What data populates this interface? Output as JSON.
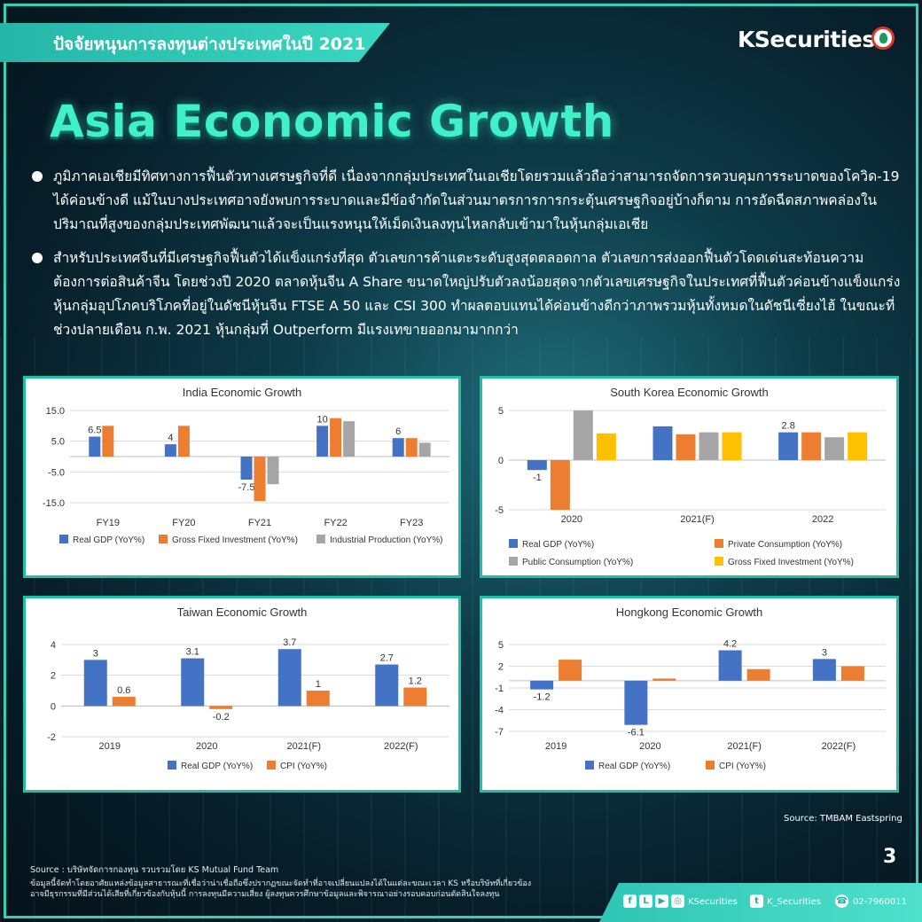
{
  "header": {
    "tag_title": "ปัจจัยหนุนการลงทุนต่างประเทศในปี 2021",
    "brand": "KSecurities"
  },
  "headline": "Asia Economic Growth",
  "bullets": [
    "ภูมิภาคเอเชียมีทิศทางการฟื้นตัวทางเศรษฐกิจที่ดี เนื่องจากกลุ่มประเทศในเอเชียโดยรวมแล้วถือว่าสามารถจัดการควบคุมการระบาดของโควิด-19 ได้ค่อนข้างดี แม้ในบางประเทศอาจยังพบการระบาดและมีข้อจำกัดในส่วนมาตรการการกระตุ้นเศรษฐกิจอยู่บ้างก็ตาม การอัดฉีดสภาพคล่องในปริมาณที่สูงของกลุ่มประเทศพัฒนาแล้วจะเป็นแรงหนุนให้เม็ดเงินลงทุนไหลกลับเข้ามาในหุ้นกลุ่มเอเชีย",
    "สำหรับประเทศจีนที่มีเศรษฐกิจฟื้นตัวได้แข็งแกร่งที่สุด ตัวเลขการค้าแตะระดับสูงสุดตลอดกาล ตัวเลขการส่งออกฟื้นตัวโดดเด่นสะท้อนความต้องการต่อสินค้าจีน โดยช่วงปี 2020 ตลาดหุ้นจีน A Share ขนาดใหญ่ปรับตัวลงน้อยสุดจากตัวเลขเศรษฐกิจในประเทศที่ฟื้นตัวค่อนข้างแข็งแกร่ง หุ้นกลุ่มอุปโภคบริโภคที่อยู่ในดัชนีหุ้นจีน FTSE A 50 และ CSI 300 ทำผลตอบแทนได้ค่อนข้างดีกว่าภาพรวมหุ้นทั้งหมดในดัชนีเซี่ยงไฮ้ ในขณะที่ช่วงปลายเดือน ก.พ. 2021 หุ้นกลุ่มที่ Outperform มีแรงเทขายออกมามากกว่า"
  ],
  "colors": {
    "blue": "#4472c4",
    "orange": "#ed7d31",
    "gray": "#a5a5a5",
    "yellow": "#ffc000",
    "accent": "#2fd1b8",
    "headline": "#3ff0c8"
  },
  "chart_data": [
    {
      "type": "bar",
      "title": "India Economic Growth",
      "categories": [
        "FY19",
        "FY20",
        "FY21",
        "FY22",
        "FY23"
      ],
      "series": [
        {
          "name": "Real GDP (YoY%)",
          "color": "#4472c4",
          "values": [
            6.5,
            4,
            -7.5,
            10,
            6
          ],
          "labels": [
            "6.5",
            "4",
            "-7.5",
            "10",
            "6"
          ]
        },
        {
          "name": "Gross Fixed Investment (YoY%)",
          "color": "#ed7d31",
          "values": [
            10,
            10,
            -14.5,
            12.5,
            6
          ]
        },
        {
          "name": "Industrial Production (YoY%)",
          "color": "#a5a5a5",
          "values": [
            null,
            null,
            -9,
            11.5,
            4.5
          ]
        }
      ],
      "yticks": [
        "15.0",
        "5.0",
        "-5.0",
        "-15.0"
      ],
      "ylim": [
        -15,
        15
      ],
      "grid": true,
      "legend": "bottom"
    },
    {
      "type": "bar",
      "title": "South Korea Economic Growth",
      "categories": [
        "2020",
        "2021(F)",
        "2022"
      ],
      "series": [
        {
          "name": "Real GDP (YoY%)",
          "color": "#4472c4",
          "values": [
            -1,
            3.4,
            2.8
          ],
          "labels": [
            "-1",
            "",
            "2.8"
          ]
        },
        {
          "name": "Private Consumption (YoY%)",
          "color": "#ed7d31",
          "values": [
            -5,
            2.6,
            2.8
          ]
        },
        {
          "name": "Public Consumption (YoY%)",
          "color": "#a5a5a5",
          "values": [
            5,
            2.8,
            2.3
          ]
        },
        {
          "name": "Gross Fixed Investment (YoY%)",
          "color": "#ffc000",
          "values": [
            2.7,
            2.8,
            2.8
          ]
        }
      ],
      "yticks": [
        "5",
        "0",
        "-5"
      ],
      "ylim": [
        -5,
        5
      ],
      "grid": true,
      "legend": "bottom"
    },
    {
      "type": "bar",
      "title": "Taiwan Economic Growth",
      "categories": [
        "2019",
        "2020",
        "2021(F)",
        "2022(F)"
      ],
      "series": [
        {
          "name": "Real GDP (YoY%)",
          "color": "#4472c4",
          "values": [
            3,
            3.1,
            3.7,
            2.7
          ],
          "labels": [
            "3",
            "3.1",
            "3.7",
            "2.7"
          ]
        },
        {
          "name": "CPI  (YoY%)",
          "color": "#ed7d31",
          "values": [
            0.6,
            -0.2,
            1,
            1.2
          ],
          "labels": [
            "0.6",
            "-0.2",
            "1",
            "1.2"
          ]
        }
      ],
      "yticks": [
        "4",
        "2",
        "0",
        "-2"
      ],
      "ylim": [
        -2,
        4
      ],
      "grid": true,
      "legend": "bottom"
    },
    {
      "type": "bar",
      "title": "Hongkong Economic Growth",
      "categories": [
        "2019",
        "2020",
        "2021(F)",
        "2022(F)"
      ],
      "series": [
        {
          "name": "Real GDP (YoY%)",
          "color": "#4472c4",
          "values": [
            -1.2,
            -6.1,
            4.2,
            3
          ],
          "labels": [
            "-1.2",
            "-6.1",
            "4.2",
            "3"
          ]
        },
        {
          "name": "CPI  (YoY%)",
          "color": "#ed7d31",
          "values": [
            2.9,
            0.3,
            1.6,
            2
          ]
        }
      ],
      "yticks": [
        "5",
        "2",
        "-1",
        "-4",
        "-7"
      ],
      "ylim": [
        -7,
        5
      ],
      "grid": true,
      "legend": "bottom"
    }
  ],
  "source_right": "Source: TMBAM Eastspring",
  "page_number": "3",
  "footnotes": [
    "Source : บริษัทจัดการกองทุน รวบรวมโดย KS Mutual Fund Team",
    "ข้อมูลนี้จัดทำโดยอาศัยแหล่งข้อมูลสาธารณะที่เชื่อว่าน่าเชื่อถือซึ่งปรากฏขณะจัดทำที่อาจเปลี่ยนแปลงได้ในแต่ละขณะเวลา KS หรือบริษัทที่เกี่ยวข้อง",
    "อาจมีธุรกรรมที่มีส่วนได้เสียที่เกี่ยวข้องกับหุ้นนี้ การลงทุนมีความเสี่ยง ผู้ลงทุนควรศึกษาข้อมูลและพิจารณาอย่างรอบคอบก่อนตัดสินใจลงทุน"
  ],
  "footer": {
    "social_handle": "KSecurities",
    "twitter_handle": "K_Securities",
    "phone": "02-7960011"
  }
}
